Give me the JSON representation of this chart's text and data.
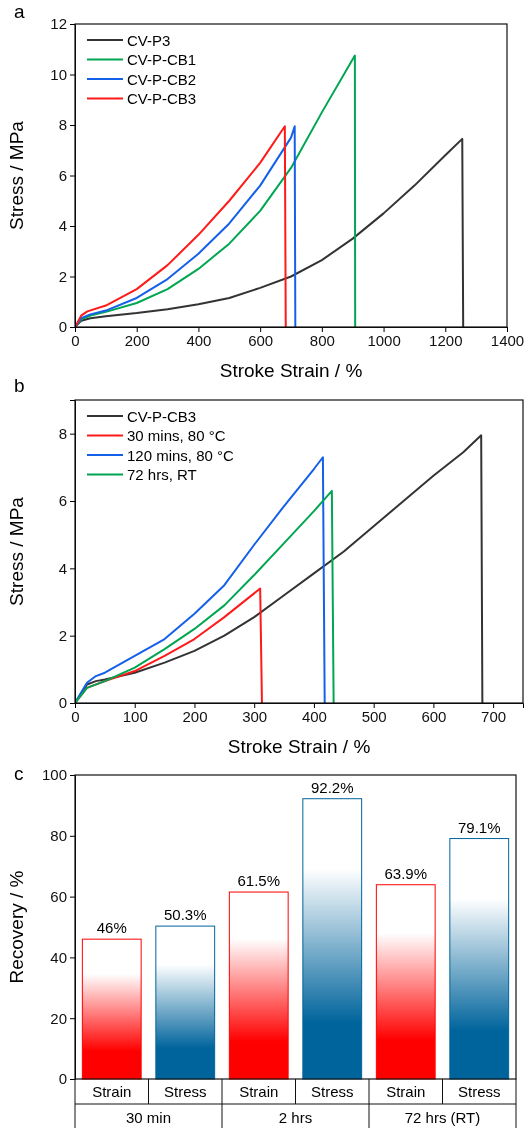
{
  "chart_data": [
    {
      "type": "line",
      "title": "a",
      "xlabel": "Stroke Strain / %",
      "ylabel": "Stress / MPa",
      "xlim": [
        0,
        1400
      ],
      "xticks": [
        0,
        200,
        400,
        600,
        800,
        1000,
        1200,
        1400
      ],
      "ylim": [
        0,
        12
      ],
      "yticks": [
        0,
        2,
        4,
        6,
        8,
        10,
        12
      ],
      "legend": "top left",
      "grid": false,
      "line_style": "solid",
      "series": [
        {
          "name": "CV-P3",
          "color": "#333333",
          "x": [
            0,
            20,
            50,
            100,
            200,
            300,
            400,
            500,
            600,
            700,
            800,
            900,
            1000,
            1100,
            1200,
            1255,
            1258
          ],
          "values": [
            0,
            0.25,
            0.35,
            0.43,
            0.55,
            0.7,
            0.9,
            1.15,
            1.55,
            2.0,
            2.65,
            3.5,
            4.5,
            5.6,
            6.8,
            7.45,
            0
          ]
        },
        {
          "name": "CV-P-CB1",
          "color": "#00a651",
          "x": [
            0,
            20,
            50,
            100,
            200,
            300,
            400,
            500,
            600,
            700,
            800,
            907,
            908
          ],
          "values": [
            0,
            0.3,
            0.45,
            0.6,
            0.95,
            1.5,
            2.3,
            3.3,
            4.6,
            6.3,
            8.5,
            10.75,
            0
          ]
        },
        {
          "name": "CV-P-CB2",
          "color": "#1560e8",
          "x": [
            0,
            20,
            50,
            100,
            200,
            300,
            400,
            500,
            600,
            700,
            712,
            714
          ],
          "values": [
            0,
            0.35,
            0.5,
            0.65,
            1.15,
            1.9,
            2.9,
            4.1,
            5.6,
            7.5,
            7.95,
            0
          ]
        },
        {
          "name": "CV-P-CB3",
          "color": "#ff1a1a",
          "x": [
            0,
            20,
            40,
            100,
            200,
            300,
            400,
            500,
            600,
            680,
            683
          ],
          "values": [
            0,
            0.45,
            0.62,
            0.85,
            1.5,
            2.45,
            3.65,
            5.0,
            6.5,
            7.95,
            0
          ]
        }
      ]
    },
    {
      "type": "line",
      "title": "b",
      "xlabel": "Stroke Strain / %",
      "ylabel": "Stress / MPa",
      "xlim": [
        0,
        750
      ],
      "xticks": [
        0,
        100,
        200,
        300,
        400,
        500,
        600,
        700
      ],
      "ylim": [
        0,
        9
      ],
      "yticks": [
        0,
        2,
        4,
        6,
        8
      ],
      "legend": "top left",
      "grid": false,
      "line_style": "solid",
      "series": [
        {
          "name": "CV-P-CB3",
          "color": "#333333",
          "x": [
            0,
            20,
            35,
            50,
            100,
            150,
            200,
            250,
            300,
            350,
            400,
            450,
            500,
            550,
            600,
            650,
            680,
            682
          ],
          "values": [
            0,
            0.55,
            0.65,
            0.7,
            0.9,
            1.2,
            1.55,
            2.0,
            2.55,
            3.2,
            3.85,
            4.5,
            5.25,
            6.0,
            6.75,
            7.45,
            7.95,
            0
          ]
        },
        {
          "name": "30 mins, 80 °C",
          "color": "#ff1a1a",
          "x": [
            0,
            20,
            50,
            100,
            150,
            200,
            250,
            310,
            313
          ],
          "values": [
            0,
            0.45,
            0.65,
            0.95,
            1.4,
            1.9,
            2.55,
            3.4,
            0
          ]
        },
        {
          "name": "120 mins, 80 °C",
          "color": "#1560e8",
          "x": [
            0,
            20,
            35,
            50,
            100,
            150,
            200,
            250,
            300,
            350,
            400,
            415,
            418
          ],
          "values": [
            0,
            0.6,
            0.8,
            0.9,
            1.4,
            1.9,
            2.65,
            3.5,
            4.7,
            5.85,
            6.95,
            7.3,
            0
          ]
        },
        {
          "name": "72 hrs, RT",
          "color": "#00a651",
          "x": [
            0,
            20,
            50,
            100,
            150,
            200,
            250,
            300,
            350,
            400,
            430,
            433
          ],
          "values": [
            0,
            0.45,
            0.65,
            1.05,
            1.6,
            2.2,
            2.9,
            3.8,
            4.75,
            5.7,
            6.3,
            0
          ]
        }
      ]
    },
    {
      "type": "bar",
      "title": "c",
      "ylabel": "Recovery / %",
      "categories": [
        "Strain",
        "Stress",
        "Strain",
        "Stress",
        "Strain",
        "Stress"
      ],
      "values": [
        46,
        50.3,
        61.5,
        92.2,
        63.9,
        79.1
      ],
      "colors": [
        "#ff0000",
        "#00649c",
        "#ff0000",
        "#00649c",
        "#ff0000",
        "#00649c"
      ],
      "value_labels": [
        "46%",
        "50.3%",
        "61.5%",
        "92.2%",
        "63.9%",
        "79.1%"
      ],
      "ylim": [
        0,
        100
      ],
      "yticks": [
        0,
        20,
        40,
        60,
        80,
        100
      ],
      "grid": false,
      "annotations": [
        "30 min",
        "2 hrs",
        "72 hrs (RT)"
      ]
    }
  ]
}
